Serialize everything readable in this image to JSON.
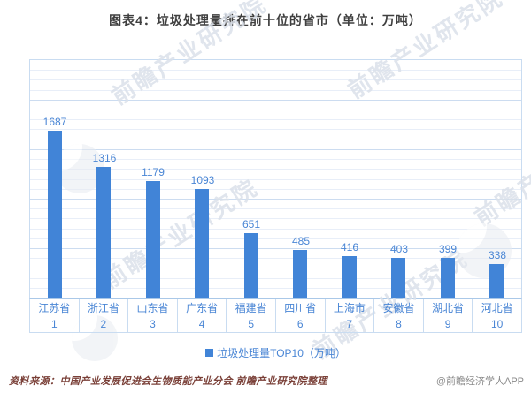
{
  "title": "图表4：垃圾处理量排在前十位的省市（单位：万吨）",
  "chart_data": {
    "type": "bar",
    "categories": [
      "江苏省",
      "浙江省",
      "山东省",
      "广东省",
      "福建省",
      "四川省",
      "上海市",
      "安徽省",
      "湖北省",
      "河北省"
    ],
    "rank_labels": [
      "1",
      "2",
      "3",
      "4",
      "5",
      "6",
      "7",
      "8",
      "9",
      "10"
    ],
    "values": [
      1687,
      1316,
      1179,
      1093,
      651,
      485,
      416,
      403,
      399,
      338
    ],
    "legend": "垃圾处理量TOP10（万吨）",
    "xlabel": "",
    "ylabel": "",
    "ylim": [
      0,
      2400
    ],
    "grid": "on",
    "grid_minor_interval": 100,
    "grid_major_interval": 500,
    "legend_position": "bottom-center"
  },
  "watermark": {
    "text": "前瞻产业研究院"
  },
  "footer": {
    "source": "资料来源：中国产业发展促进会生物质能产业分会  前瞻产业研究院整理",
    "credit": "@前瞻经济学人APP"
  },
  "colors": {
    "bar": "#4184d7",
    "value_label": "#4a86d5",
    "axis_text": "#4a86d5",
    "grid_minor": "#e8eef8",
    "grid_major": "#ccdcf0",
    "plot_border": "#c9dcf1",
    "axis_line": "#aac8e8",
    "title_text": "#3f3f3f",
    "source_text": "#7a4038",
    "credit_text": "#8a8a8a",
    "watermark": "#dbe1ea"
  }
}
